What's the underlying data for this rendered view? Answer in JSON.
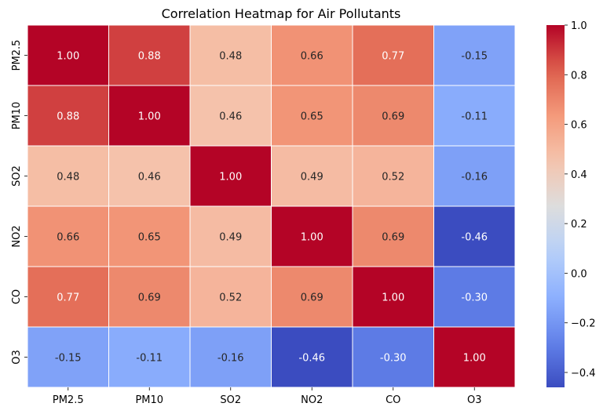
{
  "chart_data": {
    "type": "heatmap",
    "title": "Correlation Heatmap for Air Pollutants",
    "xlabel": "",
    "ylabel": "",
    "x_categories": [
      "PM2.5",
      "PM10",
      "SO2",
      "NO2",
      "CO",
      "O3"
    ],
    "y_categories": [
      "PM2.5",
      "PM10",
      "SO2",
      "NO2",
      "CO",
      "O3"
    ],
    "values": [
      [
        1.0,
        0.88,
        0.48,
        0.66,
        0.77,
        -0.15
      ],
      [
        0.88,
        1.0,
        0.46,
        0.65,
        0.69,
        -0.11
      ],
      [
        0.48,
        0.46,
        1.0,
        0.49,
        0.52,
        -0.16
      ],
      [
        0.66,
        0.65,
        0.49,
        1.0,
        0.69,
        -0.46
      ],
      [
        0.77,
        0.69,
        0.52,
        0.69,
        1.0,
        -0.3
      ],
      [
        -0.15,
        -0.11,
        -0.16,
        -0.46,
        -0.3,
        1.0
      ]
    ],
    "value_format": "2 decimals",
    "colormap": "coolwarm",
    "color_range": [
      -0.46,
      1.0
    ],
    "colorbar_ticks": [
      "−0.4",
      "−0.2",
      "0.0",
      "0.2",
      "0.4",
      "0.6",
      "0.8",
      "1.0"
    ],
    "colorbar_tick_values": [
      -0.4,
      -0.2,
      0.0,
      0.2,
      0.4,
      0.6,
      0.8,
      1.0
    ],
    "annotations": true,
    "grid_lines": "white",
    "legend": "colorbar right"
  }
}
